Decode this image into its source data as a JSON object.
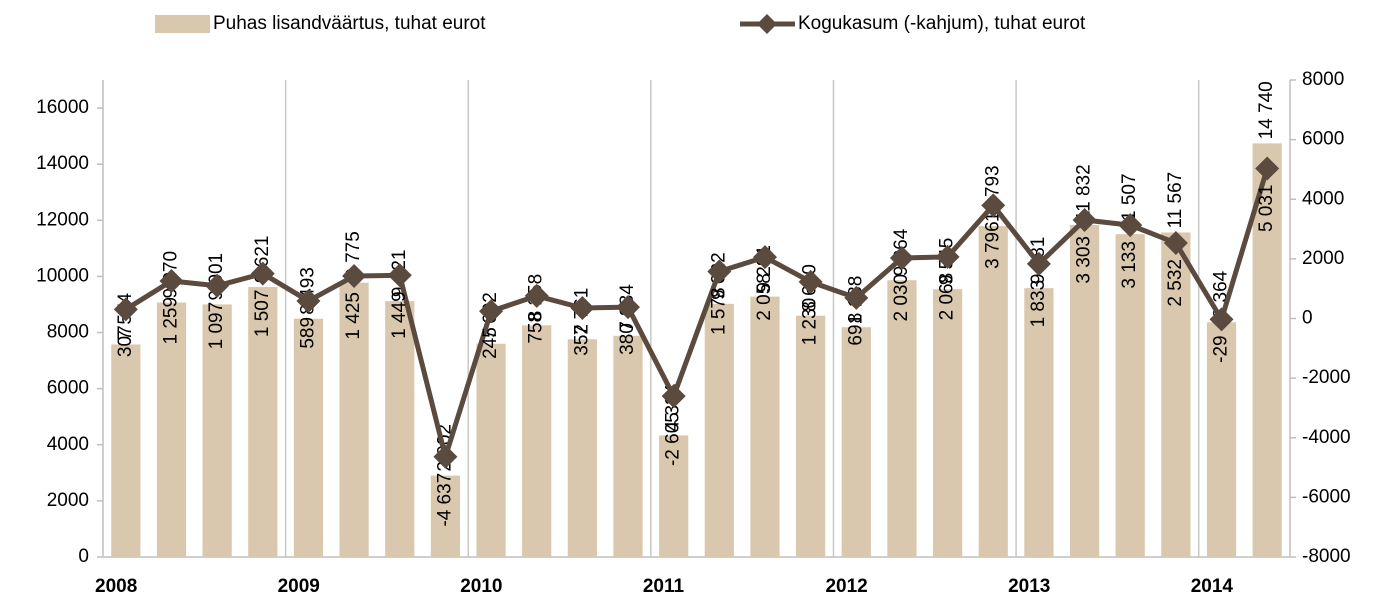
{
  "chart_data": {
    "type": "bar-line",
    "categories": [
      "2008",
      null,
      null,
      null,
      "2009",
      null,
      null,
      null,
      "2010",
      null,
      null,
      null,
      "2011",
      null,
      null,
      null,
      "2012",
      null,
      null,
      null,
      "2013",
      null,
      null,
      null,
      "2014",
      null
    ],
    "series": [
      {
        "name": "Puhas lisandväärtus, tuhat eurot",
        "type": "bar",
        "color": "#d9c8ae",
        "values": [
          7574,
          9070,
          9001,
          9621,
          8493,
          9775,
          9121,
          2902,
          7602,
          8258,
          7761,
          7884,
          4334,
          9022,
          9281,
          8600,
          8188,
          9864,
          9545,
          11793,
          9581,
          11832,
          11507,
          11567,
          8364,
          14740
        ],
        "value_labels": [
          "7 574",
          "9 070",
          "9 001",
          "9 621",
          "8 493",
          "9 775",
          "9 121",
          "2 902",
          "7 602",
          "8 258",
          "7 761",
          "7 884",
          "4 334",
          "9 022",
          "9 281",
          "8 600",
          "8 188",
          "9 864",
          "9 545",
          "11 793",
          "9 581",
          "11 832",
          "11 507",
          "11 567",
          "8 364",
          "14 740"
        ]
      },
      {
        "name": "Kogukasum (-kahjum), tuhat eurot",
        "type": "line",
        "axis": "y2",
        "color": "#5b4a3e",
        "values": [
          307,
          1259,
          1097,
          1507,
          589,
          1425,
          1449,
          -4637,
          245,
          758,
          352,
          380,
          -2605,
          1578,
          2058,
          1230,
          691,
          2030,
          2068,
          3796,
          1833,
          3303,
          3133,
          2532,
          -29,
          5031
        ],
        "value_labels": [
          "307",
          "1 259",
          "1 097",
          "1 507",
          "589",
          "1 425",
          "1 449",
          "-4 637",
          "245",
          "758",
          "352",
          "380",
          "-2 605",
          "1 578",
          "2 058",
          "1 230",
          "691",
          "2 030",
          "2 068",
          "3 796",
          "1 833",
          "3 303",
          "3 133",
          "2 532",
          "-29",
          "5 031"
        ]
      }
    ],
    "ylim": [
      0,
      17000
    ],
    "yticks": [
      0,
      2000,
      4000,
      6000,
      8000,
      10000,
      12000,
      14000,
      16000
    ],
    "y2lim": [
      -8000,
      8000
    ],
    "y2ticks": [
      -8000,
      -6000,
      -4000,
      -2000,
      0,
      2000,
      4000,
      6000,
      8000
    ],
    "negative_label_color": "#ff0000",
    "legend": "top"
  }
}
